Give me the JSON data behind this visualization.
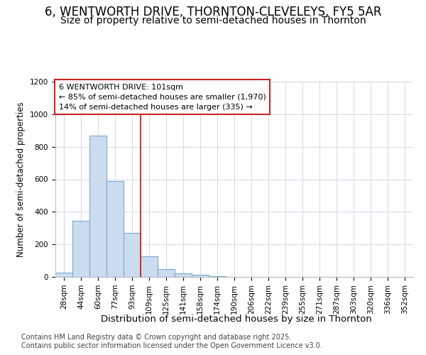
{
  "title1": "6, WENTWORTH DRIVE, THORNTON-CLEVELEYS, FY5 5AR",
  "title2": "Size of property relative to semi-detached houses in Thornton",
  "xlabel": "Distribution of semi-detached houses by size in Thornton",
  "ylabel": "Number of semi-detached properties",
  "categories": [
    "28sqm",
    "44sqm",
    "60sqm",
    "77sqm",
    "93sqm",
    "109sqm",
    "125sqm",
    "141sqm",
    "158sqm",
    "174sqm",
    "190sqm",
    "206sqm",
    "222sqm",
    "239sqm",
    "255sqm",
    "271sqm",
    "287sqm",
    "303sqm",
    "320sqm",
    "336sqm",
    "352sqm"
  ],
  "values": [
    25,
    345,
    870,
    590,
    270,
    125,
    50,
    20,
    12,
    5,
    0,
    0,
    0,
    0,
    0,
    0,
    0,
    0,
    0,
    0,
    0
  ],
  "bar_color": "#ccdcef",
  "bar_edge_color": "#7aaad0",
  "ylim": [
    0,
    1200
  ],
  "yticks": [
    0,
    200,
    400,
    600,
    800,
    1000,
    1200
  ],
  "annotation_line1": "6 WENTWORTH DRIVE: 101sqm",
  "annotation_line2": "← 85% of semi-detached houses are smaller (1,970)",
  "annotation_line3": "14% of semi-detached houses are larger (335) →",
  "vline_color": "#cc2222",
  "annotation_box_color": "#cc2222",
  "footer1": "Contains HM Land Registry data © Crown copyright and database right 2025.",
  "footer2": "Contains public sector information licensed under the Open Government Licence v3.0.",
  "bg_color": "#ffffff",
  "plot_bg_color": "#ffffff",
  "grid_color": "#d0d8e8",
  "title1_fontsize": 12,
  "title2_fontsize": 10,
  "xlabel_fontsize": 9.5,
  "ylabel_fontsize": 8.5,
  "tick_fontsize": 7.5,
  "footer_fontsize": 7,
  "ann_fontsize": 8
}
